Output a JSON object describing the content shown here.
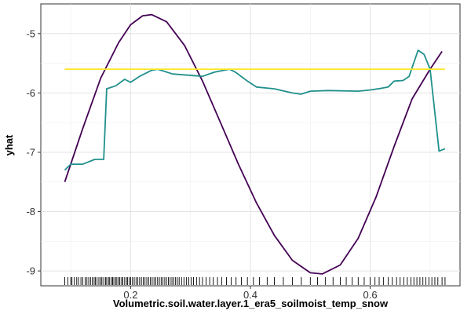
{
  "chart_data": {
    "type": "line",
    "title": "",
    "xlabel": "Volumetric.soil.water.layer.1_era5_soilmoist_temp_snow",
    "ylabel": "yhat",
    "xlim": [
      0.05,
      0.75
    ],
    "ylim": [
      -9.25,
      -4.5
    ],
    "x_ticks": [
      0.2,
      0.4,
      0.6
    ],
    "x_tick_labels": [
      "0.2",
      "0.4",
      "0.6"
    ],
    "y_ticks": [
      -9,
      -8,
      -7,
      -6,
      -5
    ],
    "y_tick_labels": [
      "-9",
      "-8",
      "-7",
      "-6",
      "-5"
    ],
    "grid": true,
    "legend": "none",
    "series": [
      {
        "color": "#440154",
        "x": [
          0.09,
          0.12,
          0.15,
          0.18,
          0.2,
          0.22,
          0.235,
          0.26,
          0.29,
          0.32,
          0.35,
          0.38,
          0.41,
          0.44,
          0.47,
          0.5,
          0.52,
          0.55,
          0.58,
          0.61,
          0.64,
          0.67,
          0.7,
          0.72
        ],
        "y": [
          -7.5,
          -6.6,
          -5.75,
          -5.15,
          -4.85,
          -4.7,
          -4.68,
          -4.8,
          -5.2,
          -5.8,
          -6.5,
          -7.2,
          -7.85,
          -8.4,
          -8.82,
          -9.03,
          -9.05,
          -8.9,
          -8.45,
          -7.75,
          -6.9,
          -6.1,
          -5.6,
          -5.3
        ]
      },
      {
        "color": "#21908C",
        "x": [
          0.09,
          0.1,
          0.12,
          0.14,
          0.155,
          0.16,
          0.175,
          0.19,
          0.2,
          0.215,
          0.235,
          0.245,
          0.27,
          0.295,
          0.32,
          0.34,
          0.365,
          0.375,
          0.395,
          0.41,
          0.44,
          0.47,
          0.485,
          0.5,
          0.53,
          0.58,
          0.6,
          0.62,
          0.63,
          0.64,
          0.655,
          0.665,
          0.68,
          0.69,
          0.7,
          0.715,
          0.725
        ],
        "y": [
          -7.3,
          -7.2,
          -7.2,
          -7.12,
          -7.12,
          -5.93,
          -5.88,
          -5.77,
          -5.82,
          -5.72,
          -5.62,
          -5.6,
          -5.68,
          -5.7,
          -5.72,
          -5.65,
          -5.6,
          -5.65,
          -5.8,
          -5.9,
          -5.93,
          -6.0,
          -6.02,
          -5.97,
          -5.96,
          -5.97,
          -5.95,
          -5.92,
          -5.9,
          -5.8,
          -5.79,
          -5.72,
          -5.28,
          -5.35,
          -5.6,
          -6.98,
          -6.94
        ]
      },
      {
        "color": "#FDE725",
        "x": [
          0.09,
          0.725
        ],
        "y": [
          -5.6,
          -5.6
        ]
      }
    ],
    "rug": [
      0.09,
      0.095,
      0.1,
      0.102,
      0.106,
      0.11,
      0.113,
      0.117,
      0.12,
      0.124,
      0.127,
      0.13,
      0.133,
      0.136,
      0.139,
      0.141,
      0.144,
      0.147,
      0.15,
      0.152,
      0.155,
      0.158,
      0.16,
      0.163,
      0.165,
      0.168,
      0.17,
      0.172,
      0.175,
      0.177,
      0.18,
      0.182,
      0.185,
      0.187,
      0.19,
      0.193,
      0.195,
      0.198,
      0.2,
      0.203,
      0.206,
      0.209,
      0.212,
      0.215,
      0.218,
      0.221,
      0.224,
      0.227,
      0.23,
      0.233,
      0.236,
      0.239,
      0.242,
      0.245,
      0.248,
      0.251,
      0.254,
      0.257,
      0.26,
      0.263,
      0.266,
      0.269,
      0.272,
      0.275,
      0.278,
      0.281,
      0.285,
      0.289,
      0.293,
      0.297,
      0.301,
      0.305,
      0.31,
      0.315,
      0.32,
      0.326,
      0.332,
      0.338,
      0.345,
      0.352,
      0.36,
      0.368,
      0.376,
      0.385,
      0.395,
      0.405,
      0.415,
      0.428,
      0.44,
      0.455,
      0.47,
      0.485,
      0.5,
      0.512,
      0.525,
      0.538,
      0.55,
      0.56,
      0.57,
      0.58,
      0.59,
      0.6,
      0.608,
      0.615,
      0.622,
      0.63,
      0.637,
      0.644,
      0.65,
      0.656,
      0.662,
      0.668,
      0.673,
      0.678,
      0.683,
      0.688,
      0.693,
      0.698,
      0.703,
      0.708,
      0.713,
      0.72,
      0.725
    ]
  }
}
